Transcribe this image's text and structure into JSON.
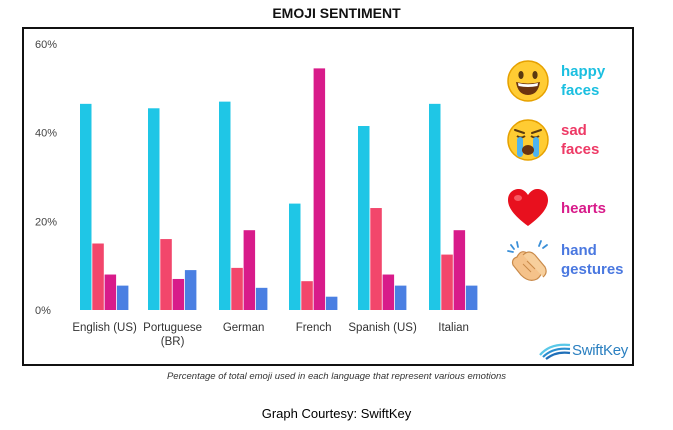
{
  "title": "EMOJI SENTIMENT",
  "caption": "Percentage of total emoji used in each language that represent various emotions",
  "credit": "Graph Courtesy: SwiftKey",
  "brand": {
    "name": "SwiftKey",
    "icon": "swiftkey-swoosh-icon"
  },
  "legend": [
    {
      "icon": "grinning-face-emoji-icon",
      "line1": "happy",
      "line2": "faces",
      "color": "#1bbfe0"
    },
    {
      "icon": "crying-face-emoji-icon",
      "line1": "sad",
      "line2": "faces",
      "color": "#ee3a66"
    },
    {
      "icon": "red-heart-emoji-icon",
      "line1": "hearts",
      "line2": "",
      "color": "#d81b8a"
    },
    {
      "icon": "clapping-hands-emoji-icon",
      "line1": "hand",
      "line2": "gestures",
      "color": "#4a78e0"
    }
  ],
  "chart_data": {
    "type": "bar",
    "categories": [
      "English (US)",
      "Portuguese (BR)",
      "German",
      "French",
      "Spanish (US)",
      "Italian"
    ],
    "series": [
      {
        "name": "happy faces",
        "color": "#1fc6e6",
        "values": [
          46.5,
          45.5,
          47,
          24,
          41.5,
          46.5
        ]
      },
      {
        "name": "sad faces",
        "color": "#f2466b",
        "values": [
          15,
          16,
          9.5,
          6.5,
          23,
          12.5
        ]
      },
      {
        "name": "hearts",
        "color": "#d81b8a",
        "values": [
          8,
          7,
          18,
          54.5,
          8,
          18
        ]
      },
      {
        "name": "hand gestures",
        "color": "#4a7fe2",
        "values": [
          5.5,
          9,
          5,
          3,
          5.5,
          5.5
        ]
      }
    ],
    "yticks": [
      "0%",
      "20%",
      "40%",
      "60%"
    ],
    "ytick_values": [
      0,
      20,
      40,
      60
    ],
    "ylim": [
      0,
      60
    ],
    "grid": false
  }
}
